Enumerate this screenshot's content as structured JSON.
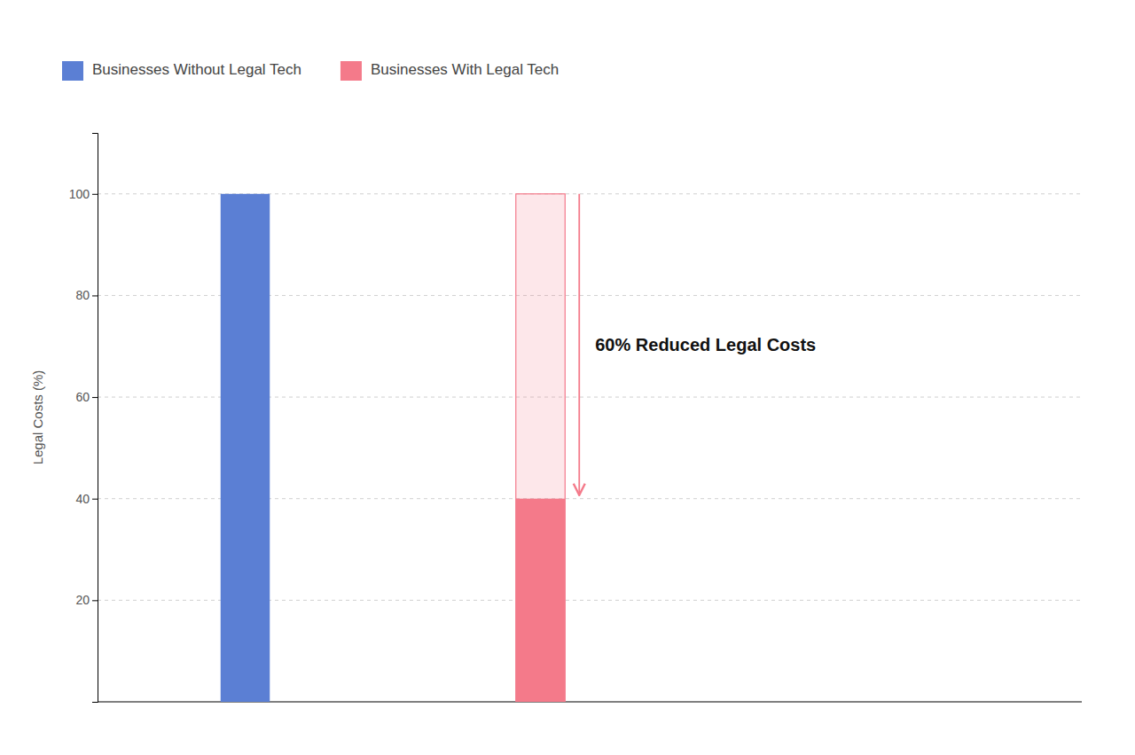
{
  "chart_data": {
    "type": "bar",
    "categories": [
      null,
      null
    ],
    "series": [
      {
        "name": "Businesses Without Legal Tech",
        "color": "#5b7fd4",
        "values": [
          100,
          null
        ]
      },
      {
        "name": "Businesses With Legal Tech",
        "color": "#f47a8a",
        "values": [
          null,
          40
        ],
        "reference_values": [
          null,
          100
        ]
      }
    ],
    "ylabel": "Legal Costs (%)",
    "ylim": [
      0,
      112
    ],
    "yticks": [
      20,
      40,
      60,
      80,
      100
    ],
    "grid": true,
    "legend": "top-left",
    "tick_labels": "y",
    "annotation": "60% Reduced Legal Costs"
  }
}
